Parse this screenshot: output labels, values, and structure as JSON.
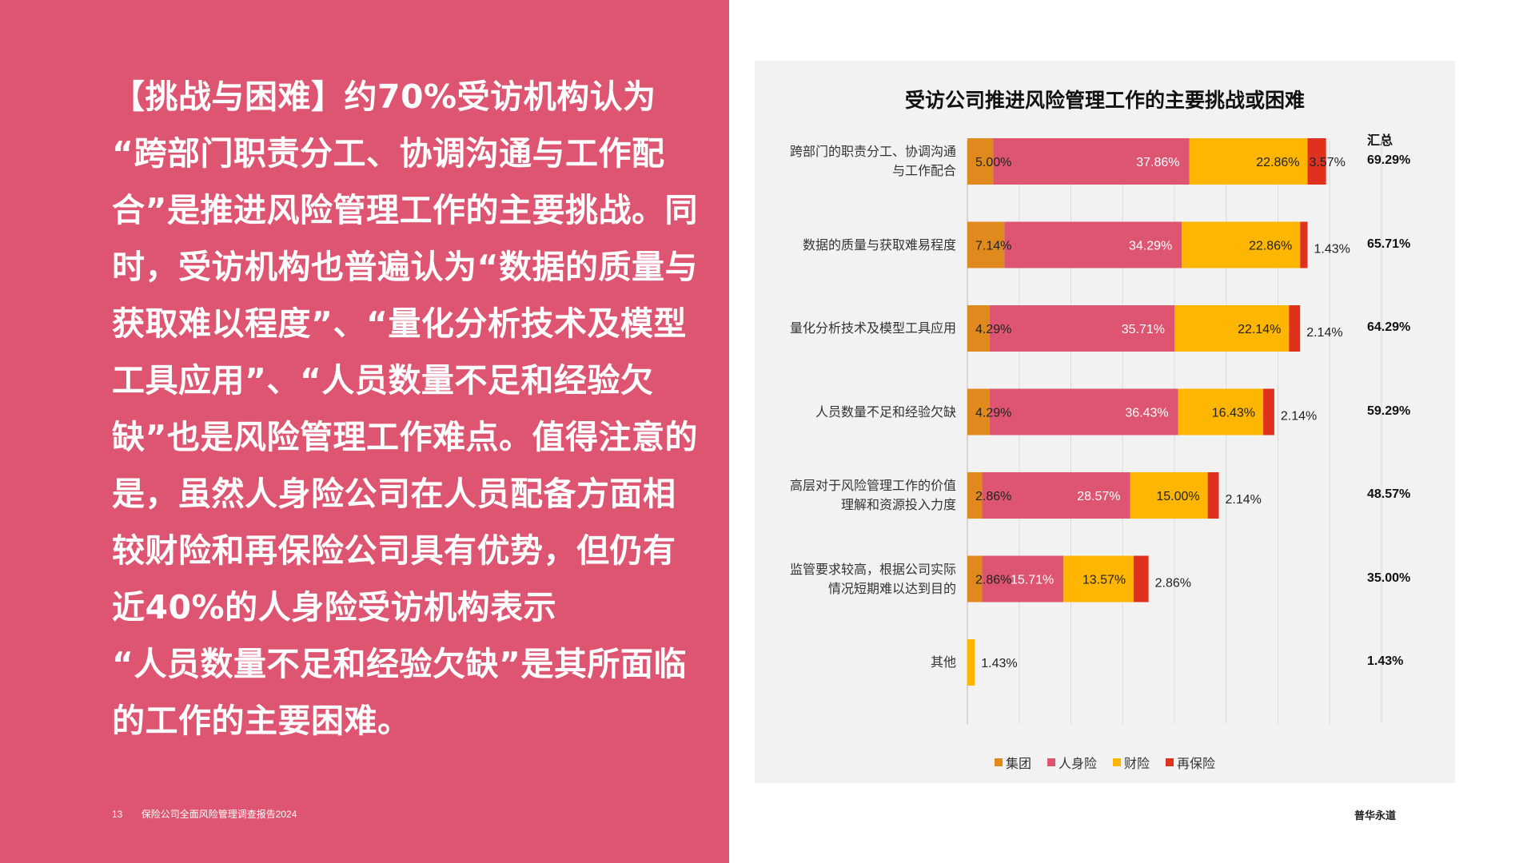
{
  "page": {
    "body_text": "【挑战与困难】约70%受访机构认为\n“跨部门职责分工、协调沟通与工作配合”是推进风险管理工作的主要挑战。同时，受访机构也普遍认为“数据的质量与获取难以程度”、“量化分析技术及模型工具应用”、“人员数量不足和经验欠缺”也是风险管理工作难点。值得注意的是，虽然人身险公司在人员配备方面相较财险和再保险公司具有优势，但仍有近40%的人身险受访机构表示\n“人员数量不足和经验欠缺”是其所面临的工作的主要困难。",
    "page_number": "13",
    "report_title": "保险公司全面风险管理调查报告2024",
    "brand": "普华永道",
    "left_bg_color": "#dd5570"
  },
  "chart_data": {
    "type": "bar",
    "orientation": "horizontal",
    "stacked": true,
    "title": "受访公司推进风险管理工作的主要挑战或困难",
    "summary_header": "汇总",
    "categories": [
      "跨部门的职责分工、协调沟通与工作配合",
      "数据的质量与获取难易程度",
      "量化分析技术及模型工具应用",
      "人员数量不足和经验欠缺",
      "高层对于风险管理工作的价值理解和资源投入力度",
      "监管要求较高，根据公司实际情况短期难以达到目的",
      "其他"
    ],
    "category_lines": [
      [
        "跨部门的职责分工、协调沟通",
        "与工作配合"
      ],
      [
        "数据的质量与获取难易程度"
      ],
      [
        "量化分析技术及模型工具应用"
      ],
      [
        "人员数量不足和经验欠缺"
      ],
      [
        "高层对于风险管理工作的价值",
        "理解和资源投入力度"
      ],
      [
        "监管要求较高，根据公司实际",
        "情况短期难以达到目的"
      ],
      [
        "其他"
      ]
    ],
    "series": [
      {
        "name": "集团",
        "color": "#e08a1e",
        "values": [
          5.0,
          7.14,
          4.29,
          4.29,
          2.86,
          2.86,
          0
        ],
        "labels": [
          "5.00%",
          "7.14%",
          "4.29%",
          "4.29%",
          "2.86%",
          "2.86%",
          ""
        ]
      },
      {
        "name": "人身险",
        "color": "#dd5570",
        "values": [
          37.86,
          34.29,
          35.71,
          36.43,
          28.57,
          15.71,
          0
        ],
        "labels": [
          "37.86%",
          "34.29%",
          "35.71%",
          "36.43%",
          "28.57%",
          "15.71%",
          ""
        ]
      },
      {
        "name": "财险",
        "color": "#ffb600",
        "values": [
          22.86,
          22.86,
          22.14,
          16.43,
          15.0,
          13.57,
          1.43
        ],
        "labels": [
          "22.86%",
          "22.86%",
          "22.14%",
          "16.43%",
          "15.00%",
          "13.57%",
          "1.43%"
        ]
      },
      {
        "name": "再保险",
        "color": "#e0301e",
        "values": [
          3.57,
          1.43,
          2.14,
          2.14,
          2.14,
          2.86,
          0
        ],
        "labels": [
          "3.57%",
          "1.43%",
          "2.14%",
          "2.14%",
          "2.14%",
          "2.86%",
          ""
        ]
      }
    ],
    "totals": [
      "69.29%",
      "65.71%",
      "64.29%",
      "59.29%",
      "48.57%",
      "35.00%",
      "1.43%"
    ],
    "xlim": [
      0,
      80
    ],
    "grid": true,
    "legend_position": "bottom"
  }
}
